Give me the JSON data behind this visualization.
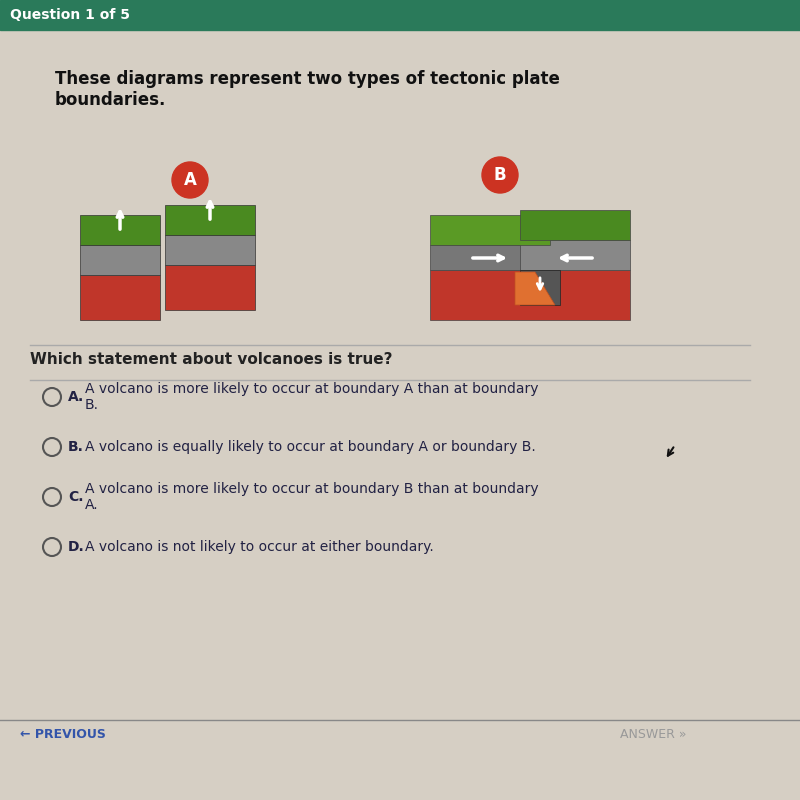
{
  "bg_color": "#d6cfc4",
  "header_bar_color": "#2a7a5a",
  "header_text": "Question 1 of 5",
  "header_text_color": "#ffffff",
  "question_text": "These diagrams represent two types of tectonic plate\nboundaries.",
  "question_text_color": "#111111",
  "sub_question": "Which statement about volcanoes is true?",
  "sub_question_color": "#222222",
  "label_A": "A",
  "label_B": "B",
  "label_circle_color": "#cc3322",
  "label_text_color": "#ffffff",
  "options": [
    {
      "letter": "A",
      "text": "A volcano is more likely to occur at boundary A than at boundary\nB."
    },
    {
      "letter": "B",
      "text": "A volcano is equally likely to occur at boundary A or boundary B."
    },
    {
      "letter": "C",
      "text": "A volcano is more likely to occur at boundary B than at boundary\nA."
    },
    {
      "letter": "D",
      "text": "A volcano is not likely to occur at either boundary."
    }
  ],
  "option_text_color": "#222244",
  "option_letter_color": "#222244",
  "divider_color": "#aaaaaa",
  "footer_text": "← PREVIOUS",
  "footer_color": "#3355aa",
  "cursor_color": "#111111"
}
